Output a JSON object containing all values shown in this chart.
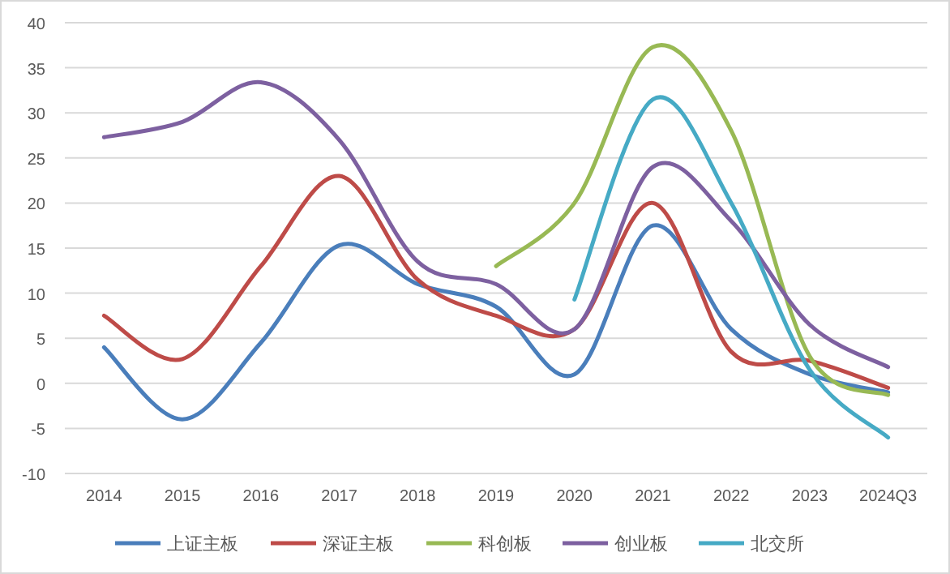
{
  "chart_data": {
    "type": "line",
    "categories": [
      "2014",
      "2015",
      "2016",
      "2017",
      "2018",
      "2019",
      "2020",
      "2021",
      "2022",
      "2023",
      "2024Q3"
    ],
    "series": [
      {
        "name": "上证主板",
        "color": "#4a7ebb",
        "values": [
          4,
          -4,
          4.5,
          15.3,
          11,
          8.5,
          1,
          17.5,
          6,
          1,
          -1
        ]
      },
      {
        "name": "深证主板",
        "color": "#be4b48",
        "values": [
          7.5,
          2.7,
          13,
          23,
          11.5,
          7.5,
          6,
          20,
          3.5,
          2.5,
          -0.5
        ]
      },
      {
        "name": "科创板",
        "color": "#98b954",
        "values": [
          null,
          null,
          null,
          null,
          null,
          13,
          20,
          37.3,
          28,
          3,
          -1.3
        ]
      },
      {
        "name": "创业板",
        "color": "#7d60a0",
        "values": [
          27.3,
          29,
          33.4,
          27,
          13.5,
          11,
          6,
          24,
          18,
          6.5,
          1.8
        ]
      },
      {
        "name": "北交所",
        "color": "#46aac5",
        "values": [
          null,
          null,
          null,
          null,
          null,
          null,
          9.3,
          31.5,
          20,
          1.5,
          -6
        ]
      }
    ],
    "ylim": [
      -10,
      40
    ],
    "yticks": [
      -10,
      -5,
      0,
      5,
      10,
      15,
      20,
      25,
      30,
      35,
      40
    ],
    "grid": "y",
    "legend": "bottom",
    "marker": "none",
    "line_style": "solid"
  }
}
